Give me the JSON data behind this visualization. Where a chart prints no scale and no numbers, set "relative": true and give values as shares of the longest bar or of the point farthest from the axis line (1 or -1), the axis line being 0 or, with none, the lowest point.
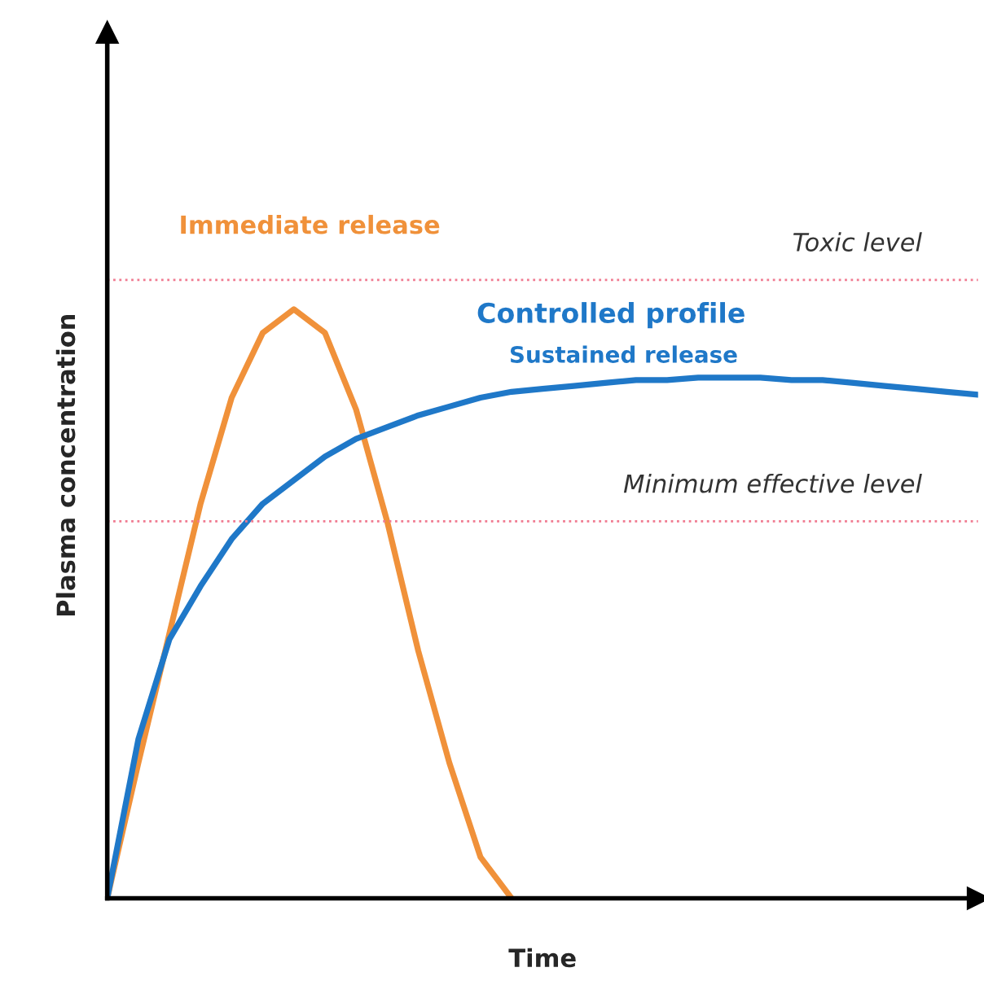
{
  "chart_data": {
    "type": "line",
    "relative": true,
    "xlabel": "Time",
    "ylabel": "Plasma concentration",
    "categories": [
      null,
      null,
      null,
      null,
      null,
      null,
      null,
      null,
      null,
      null,
      null,
      null,
      null,
      null,
      null,
      null,
      null,
      null,
      null,
      null,
      null,
      null,
      null,
      null,
      null,
      null,
      null,
      null,
      null
    ],
    "series": [
      {
        "name": "Immediate release",
        "color": "#f0913a",
        "values": [
          0,
          0.23,
          0.45,
          0.67,
          0.85,
          0.96,
          1.0,
          0.96,
          0.83,
          0.64,
          0.42,
          0.23,
          0.07,
          0,
          null,
          null,
          null,
          null,
          null,
          null,
          null,
          null,
          null,
          null,
          null,
          null,
          null,
          null,
          null
        ]
      },
      {
        "name": "Sustained release",
        "color": "#1f78c8",
        "values": [
          0,
          0.27,
          0.44,
          0.53,
          0.61,
          0.67,
          0.71,
          0.75,
          0.78,
          0.8,
          0.82,
          0.835,
          0.85,
          0.86,
          0.865,
          0.87,
          0.875,
          0.88,
          0.88,
          0.884,
          0.884,
          0.884,
          0.88,
          0.88,
          0.875,
          0.87,
          0.865,
          0.86,
          0.855
        ]
      }
    ],
    "ref_lines": [
      {
        "axis": "y",
        "value": 1.05,
        "label": "Toxic level",
        "color": "#f07a90",
        "line_style": "dotted"
      },
      {
        "axis": "y",
        "value": 0.64,
        "label": "Minimum effective level",
        "color": "#f07a90",
        "line_style": "dotted"
      }
    ],
    "annotations": [
      "Controlled profile"
    ],
    "marker": "none",
    "line_style": "solid",
    "legend": false
  }
}
